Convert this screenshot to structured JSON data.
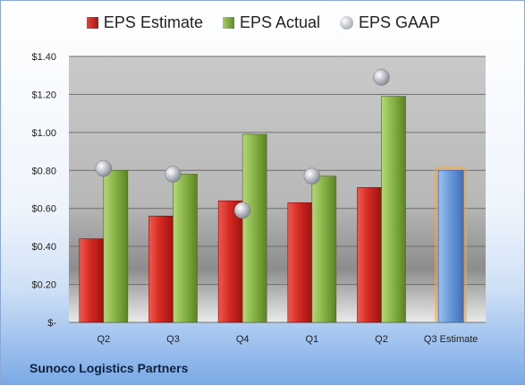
{
  "chart_data": {
    "type": "bar",
    "categories": [
      "Q2",
      "Q3",
      "Q4",
      "Q1",
      "Q2",
      "Q3 Estimate"
    ],
    "series": [
      {
        "name": "EPS Estimate",
        "values": [
          0.44,
          0.56,
          0.64,
          0.63,
          0.71,
          null
        ],
        "color": "#c0201e"
      },
      {
        "name": "EPS Actual",
        "values": [
          0.8,
          0.78,
          0.99,
          0.77,
          1.19,
          null
        ],
        "color": "#7ea742"
      },
      {
        "name": "EPS GAAP",
        "values": [
          0.81,
          0.78,
          0.59,
          0.77,
          1.29,
          null
        ],
        "color": "#b9bcc2"
      }
    ],
    "forecast": {
      "category": "Q3 Estimate",
      "value": 0.8,
      "color": "#5e8fd4",
      "glow": "#f4a540"
    },
    "ylim": [
      0,
      1.4
    ],
    "yticks": [
      0,
      0.2,
      0.4,
      0.6,
      0.8,
      1.0,
      1.2,
      1.4
    ],
    "ytick_labels": [
      "$-",
      "$0.20",
      "$0.40",
      "$0.60",
      "$0.80",
      "$1.00",
      "$1.20",
      "$1.40"
    ],
    "grid": true,
    "legend_position": "top"
  },
  "legend": {
    "estimate_label": "EPS Estimate",
    "actual_label": "EPS Actual",
    "gaap_label": "EPS GAAP"
  },
  "footer": {
    "company": "Sunoco Logistics Partners"
  }
}
